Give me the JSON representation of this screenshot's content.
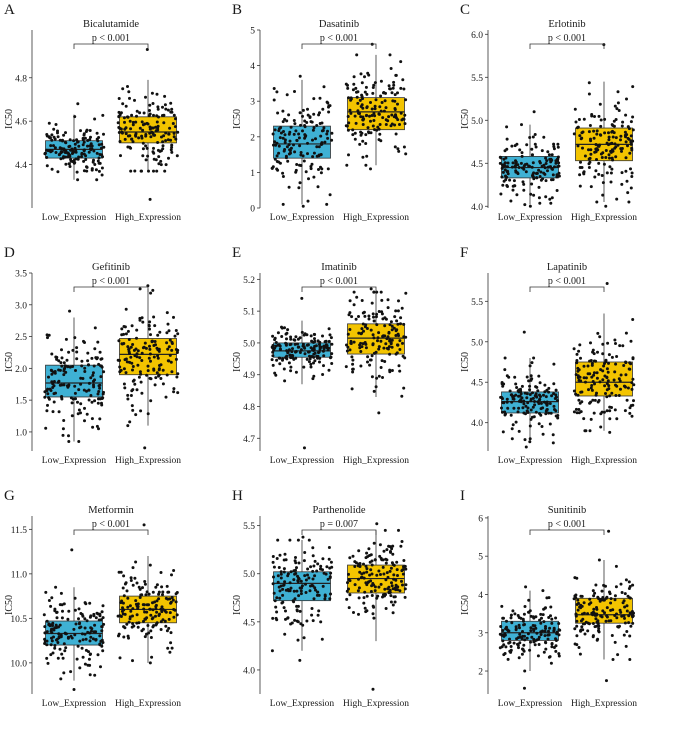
{
  "figure": {
    "low_color": "#3fb1d4",
    "high_color": "#f3c400"
  },
  "chart_data": [
    {
      "panel": "A",
      "type": "box",
      "title": "Bicalutamide",
      "ylabel": "IC50",
      "categories": [
        "Low_Expression",
        "High_Expression"
      ],
      "pvalue": "p < 0.001",
      "ylim": [
        4.2,
        5.02
      ],
      "yticks": [
        "4.4",
        "4.6",
        "4.8"
      ],
      "series": [
        {
          "name": "Low_Expression",
          "q1": 4.43,
          "median": 4.47,
          "q3": 4.51,
          "whisker_low": 4.33,
          "whisker_high": 4.63,
          "min": 4.33,
          "max": 4.68
        },
        {
          "name": "High_Expression",
          "q1": 4.5,
          "median": 4.55,
          "q3": 4.62,
          "whisker_low": 4.37,
          "whisker_high": 4.79,
          "min": 4.24,
          "max": 4.93
        }
      ]
    },
    {
      "panel": "B",
      "type": "box",
      "title": "Dasatinib",
      "ylabel": "IC50",
      "categories": [
        "Low_Expression",
        "High_Expression"
      ],
      "pvalue": "p < 0.001",
      "ylim": [
        0,
        5.0
      ],
      "yticks": [
        "0",
        "1",
        "2",
        "3",
        "4",
        "5"
      ],
      "series": [
        {
          "name": "Low_Expression",
          "q1": 1.4,
          "median": 1.8,
          "q3": 2.3,
          "whisker_low": 0.1,
          "whisker_high": 3.6,
          "min": 0.05,
          "max": 3.7
        },
        {
          "name": "High_Expression",
          "q1": 2.2,
          "median": 2.7,
          "q3": 3.1,
          "whisker_low": 1.2,
          "whisker_high": 4.3,
          "min": 1.1,
          "max": 4.6
        }
      ]
    },
    {
      "panel": "C",
      "type": "box",
      "title": "Erlotinib",
      "ylabel": "IC50",
      "categories": [
        "Low_Expression",
        "High_Expression"
      ],
      "pvalue": "p < 0.001",
      "ylim": [
        3.98,
        6.05
      ],
      "yticks": [
        "4.0",
        "4.5",
        "5.0",
        "5.5",
        "6.0"
      ],
      "series": [
        {
          "name": "Low_Expression",
          "q1": 4.33,
          "median": 4.45,
          "q3": 4.58,
          "whisker_low": 4.02,
          "whisker_high": 4.95,
          "min": 4.0,
          "max": 5.1
        },
        {
          "name": "High_Expression",
          "q1": 4.53,
          "median": 4.72,
          "q3": 4.91,
          "whisker_low": 4.05,
          "whisker_high": 5.45,
          "min": 4.0,
          "max": 5.88
        }
      ]
    },
    {
      "panel": "D",
      "type": "box",
      "title": "Gefitinib",
      "ylabel": "IC50",
      "categories": [
        "Low_Expression",
        "High_Expression"
      ],
      "pvalue": "p < 0.001",
      "ylim": [
        0.7,
        3.5
      ],
      "yticks": [
        "1.0",
        "1.5",
        "2.0",
        "2.5",
        "3.0",
        "3.5"
      ],
      "series": [
        {
          "name": "Low_Expression",
          "q1": 1.55,
          "median": 1.77,
          "q3": 2.05,
          "whisker_low": 0.85,
          "whisker_high": 2.8,
          "min": 0.85,
          "max": 2.9
        },
        {
          "name": "High_Expression",
          "q1": 1.9,
          "median": 2.22,
          "q3": 2.47,
          "whisker_low": 1.1,
          "whisker_high": 3.25,
          "min": 0.75,
          "max": 3.3
        }
      ]
    },
    {
      "panel": "E",
      "type": "box",
      "title": "Imatinib",
      "ylabel": "IC50",
      "categories": [
        "Low_Expression",
        "High_Expression"
      ],
      "pvalue": "p < 0.001",
      "ylim": [
        4.66,
        5.22
      ],
      "yticks": [
        "4.7",
        "4.8",
        "4.9",
        "5.0",
        "5.1",
        "5.2"
      ],
      "series": [
        {
          "name": "Low_Expression",
          "q1": 4.955,
          "median": 4.975,
          "q3": 5.0,
          "whisker_low": 4.87,
          "whisker_high": 5.07,
          "min": 4.67,
          "max": 5.14
        },
        {
          "name": "High_Expression",
          "q1": 4.965,
          "median": 5.015,
          "q3": 5.06,
          "whisker_low": 4.83,
          "whisker_high": 5.16,
          "min": 4.78,
          "max": 5.17
        }
      ]
    },
    {
      "panel": "F",
      "type": "box",
      "title": "Lapatinib",
      "ylabel": "IC50",
      "categories": [
        "Low_Expression",
        "High_Expression"
      ],
      "pvalue": "p < 0.001",
      "ylim": [
        3.65,
        5.85
      ],
      "yticks": [
        "4.0",
        "4.5",
        "5.0",
        "5.5"
      ],
      "series": [
        {
          "name": "Low_Expression",
          "q1": 4.12,
          "median": 4.26,
          "q3": 4.38,
          "whisker_low": 3.75,
          "whisker_high": 4.8,
          "min": 3.7,
          "max": 5.12
        },
        {
          "name": "High_Expression",
          "q1": 4.33,
          "median": 4.5,
          "q3": 4.75,
          "whisker_low": 3.9,
          "whisker_high": 5.35,
          "min": 3.88,
          "max": 5.72
        }
      ]
    },
    {
      "panel": "G",
      "type": "box",
      "title": "Metformin",
      "ylabel": "IC50",
      "categories": [
        "Low_Expression",
        "High_Expression"
      ],
      "pvalue": "p < 0.001",
      "ylim": [
        9.65,
        11.65
      ],
      "yticks": [
        "10.0",
        "10.5",
        "11.0",
        "11.5"
      ],
      "series": [
        {
          "name": "Low_Expression",
          "q1": 10.2,
          "median": 10.33,
          "q3": 10.47,
          "whisker_low": 9.8,
          "whisker_high": 10.85,
          "min": 9.7,
          "max": 11.27
        },
        {
          "name": "High_Expression",
          "q1": 10.45,
          "median": 10.6,
          "q3": 10.75,
          "whisker_low": 10.0,
          "whisker_high": 11.2,
          "min": 10.0,
          "max": 11.55
        }
      ]
    },
    {
      "panel": "H",
      "type": "box",
      "title": "Parthenolide",
      "ylabel": "IC50",
      "categories": [
        "Low_Expression",
        "High_Expression"
      ],
      "pvalue": "p = 0.007",
      "ylim": [
        3.75,
        5.6
      ],
      "yticks": [
        "4.0",
        "4.5",
        "5.0",
        "5.5"
      ],
      "series": [
        {
          "name": "Low_Expression",
          "q1": 4.72,
          "median": 4.9,
          "q3": 5.02,
          "whisker_low": 4.2,
          "whisker_high": 5.35,
          "min": 4.1,
          "max": 5.38
        },
        {
          "name": "High_Expression",
          "q1": 4.8,
          "median": 4.95,
          "q3": 5.09,
          "whisker_low": 4.3,
          "whisker_high": 5.45,
          "min": 3.8,
          "max": 5.52
        }
      ]
    },
    {
      "panel": "I",
      "type": "box",
      "title": "Sunitinib",
      "ylabel": "IC50",
      "categories": [
        "Low_Expression",
        "High_Expression"
      ],
      "pvalue": "p < 0.001",
      "ylim": [
        1.4,
        6.05
      ],
      "yticks": [
        "2",
        "3",
        "4",
        "5",
        "6"
      ],
      "series": [
        {
          "name": "Low_Expression",
          "q1": 2.8,
          "median": 3.0,
          "q3": 3.3,
          "whisker_low": 2.0,
          "whisker_high": 4.1,
          "min": 1.55,
          "max": 4.2
        },
        {
          "name": "High_Expression",
          "q1": 3.25,
          "median": 3.47,
          "q3": 3.9,
          "whisker_low": 2.3,
          "whisker_high": 4.9,
          "min": 1.75,
          "max": 5.65
        }
      ]
    }
  ]
}
